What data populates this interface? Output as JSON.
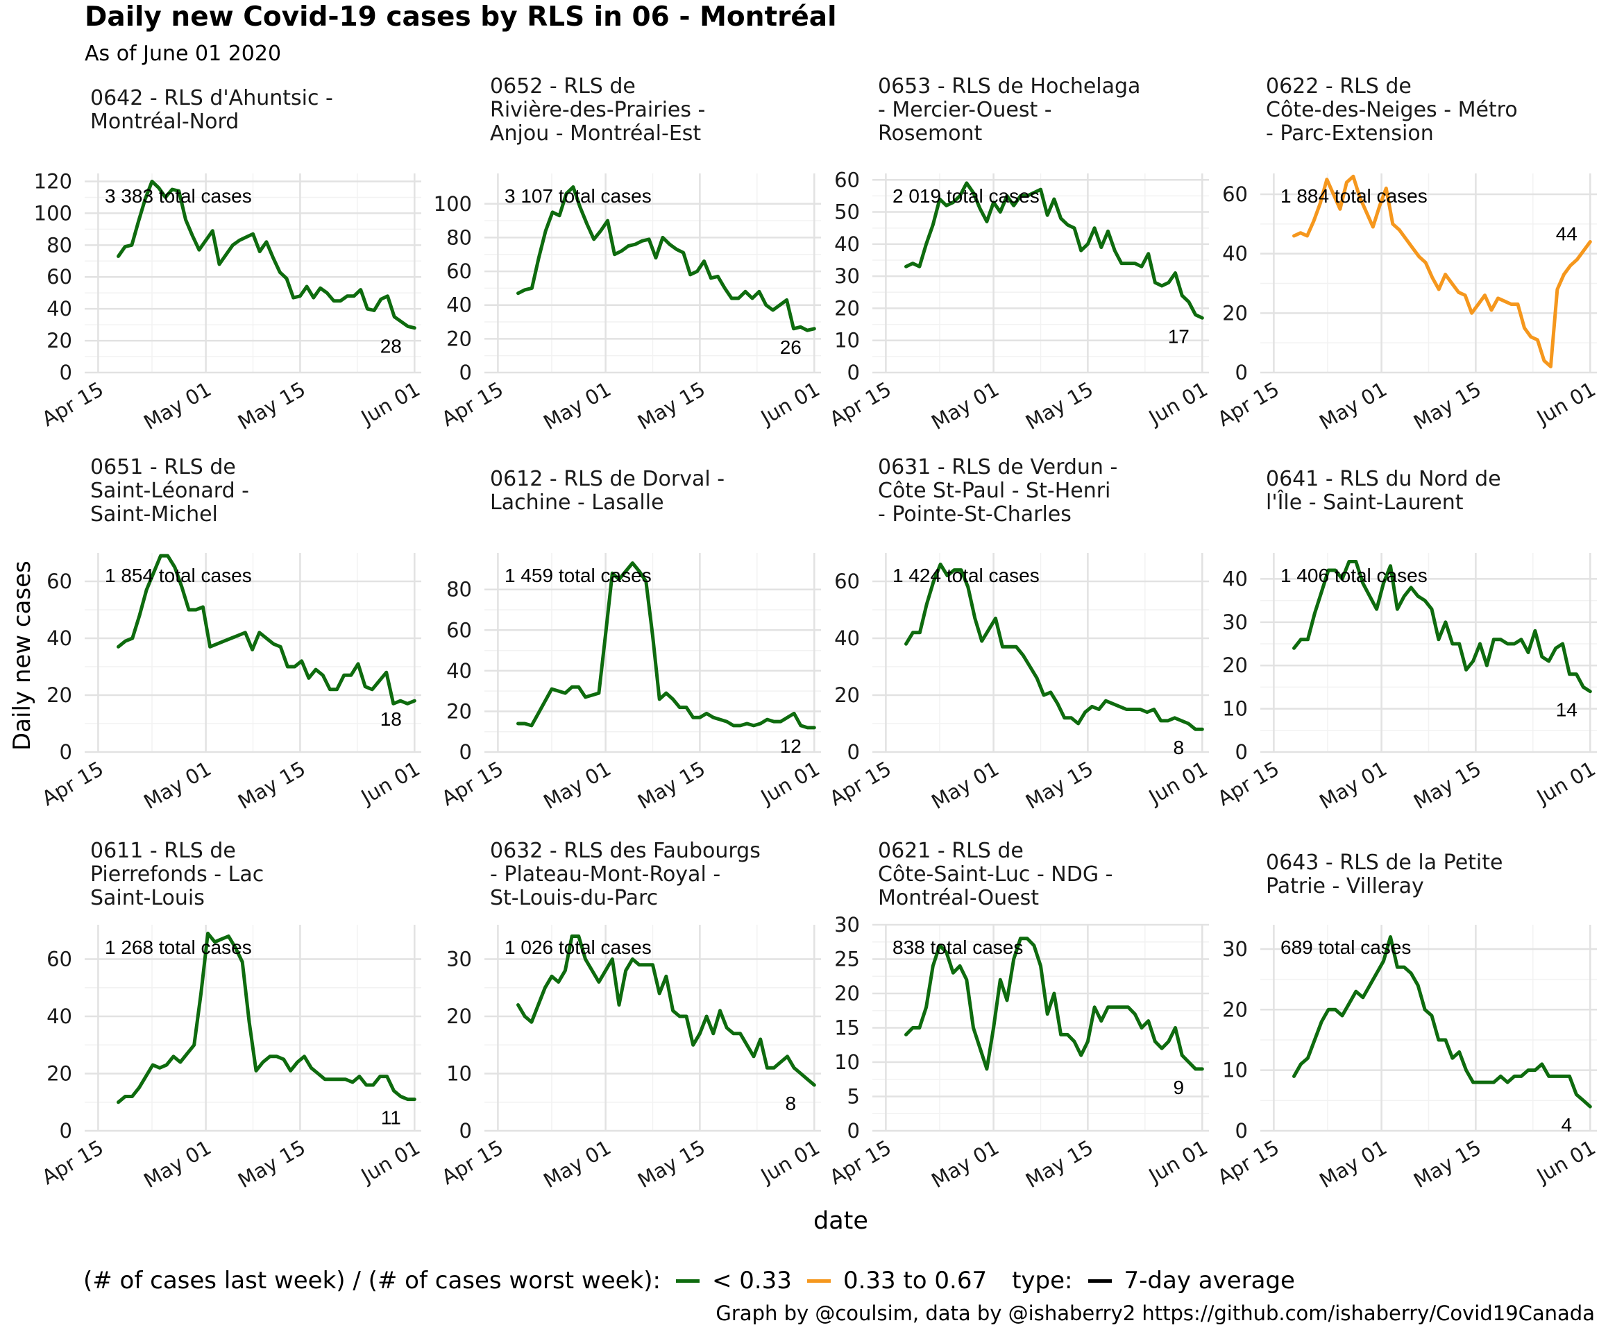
{
  "title": "Daily new Covid-19 cases by RLS in 06 - Montréal",
  "subtitle": "As of June 01 2020",
  "xlabel": "date",
  "ylabel": "Daily new cases",
  "legend": {
    "fill_title": "(# of cases last week) / (# of cases worst week):",
    "items": [
      {
        "label": "< 0.33",
        "color": "#0e6b0e"
      },
      {
        "label": "0.33 to 0.67",
        "color": "#f5971d"
      }
    ],
    "type_title": "type:",
    "type_items": [
      {
        "label": "7-day average",
        "color": "#000000"
      }
    ]
  },
  "caption": "Graph by @coulsim, data by @ishaberry2 https://github.com/ishaberry/Covid19Canada",
  "chart_data": {
    "type": "line",
    "facets": "3x4",
    "x_unit": "days since Apr 01 2020",
    "x_range": [
      13,
      63
    ],
    "x_ticks": [
      {
        "value": 15,
        "label": "Apr 15"
      },
      {
        "value": 31,
        "label": "May 01"
      },
      {
        "value": 45,
        "label": "May 15"
      },
      {
        "value": 62,
        "label": "Jun 01"
      }
    ],
    "x_start": 18,
    "grid": true,
    "panels": [
      {
        "title": [
          "0642 - RLS d'Ahuntsic -",
          "Montréal-Nord"
        ],
        "total": "3 383 total cases",
        "end_label": "28",
        "color": "#0e6b0e",
        "ylim": [
          0,
          125
        ],
        "yticks": [
          0,
          20,
          40,
          60,
          80,
          100,
          120
        ],
        "values": [
          73,
          79,
          80,
          95,
          109,
          120,
          116,
          110,
          115,
          114,
          96,
          86,
          77,
          83,
          89,
          68,
          74,
          80,
          83,
          85,
          87,
          76,
          82,
          72,
          63,
          59,
          47,
          48,
          54,
          47,
          53,
          50,
          45,
          45,
          48,
          48,
          52,
          40,
          39,
          46,
          48,
          35,
          32,
          29,
          28
        ]
      },
      {
        "title": [
          "0652 - RLS de",
          "Rivière-des-Prairies -",
          "Anjou - Montréal-Est"
        ],
        "total": "3 107 total cases",
        "end_label": "26",
        "color": "#0e6b0e",
        "ylim": [
          0,
          118
        ],
        "yticks": [
          0,
          20,
          40,
          60,
          80,
          100
        ],
        "values": [
          47,
          49,
          50,
          68,
          84,
          95,
          93,
          106,
          110,
          98,
          88,
          79,
          84,
          90,
          70,
          72,
          75,
          76,
          78,
          79,
          68,
          80,
          76,
          73,
          71,
          58,
          60,
          66,
          56,
          57,
          50,
          44,
          44,
          48,
          44,
          48,
          40,
          37,
          40,
          43,
          26,
          27,
          25,
          26
        ]
      },
      {
        "title": [
          "0653 - RLS de Hochelaga",
          "- Mercier-Ouest -",
          "Rosemont"
        ],
        "total": "2 019 total cases",
        "end_label": "17",
        "color": "#0e6b0e",
        "ylim": [
          0,
          62
        ],
        "yticks": [
          0,
          10,
          20,
          30,
          40,
          50,
          60
        ],
        "values": [
          33,
          34,
          33,
          40,
          46,
          54,
          52,
          53,
          55,
          59,
          56,
          51,
          47,
          53,
          50,
          55,
          52,
          55,
          55,
          56,
          57,
          49,
          54,
          48,
          46,
          45,
          38,
          40,
          45,
          39,
          44,
          38,
          34,
          34,
          34,
          33,
          37,
          28,
          27,
          28,
          31,
          24,
          22,
          18,
          17
        ]
      },
      {
        "title": [
          "0622 - RLS de",
          "Côte-des-Neiges - Métro",
          "- Parc-Extension"
        ],
        "total": "1 884 total cases",
        "end_label": "44",
        "color": "#f5971d",
        "ylim": [
          0,
          67
        ],
        "yticks": [
          0,
          20,
          40,
          60
        ],
        "values": [
          46,
          47,
          46,
          51,
          57,
          65,
          60,
          55,
          64,
          66,
          59,
          54,
          49,
          56,
          62,
          50,
          48,
          45,
          42,
          39,
          37,
          32,
          28,
          33,
          30,
          27,
          26,
          20,
          23,
          26,
          21,
          25,
          24,
          23,
          23,
          15,
          12,
          11,
          4,
          2,
          28,
          33,
          36,
          38,
          41,
          44
        ]
      },
      {
        "title": [
          "0651 - RLS de",
          "Saint-Léonard -",
          "Saint-Michel"
        ],
        "total": "1 854 total cases",
        "end_label": "18",
        "color": "#0e6b0e",
        "ylim": [
          0,
          70
        ],
        "yticks": [
          0,
          20,
          40,
          60
        ],
        "values": [
          37,
          39,
          40,
          48,
          57,
          63,
          69,
          69,
          65,
          58,
          50,
          50,
          51,
          37,
          38,
          39,
          40,
          41,
          42,
          36,
          42,
          40,
          38,
          37,
          30,
          30,
          32,
          26,
          29,
          27,
          22,
          22,
          27,
          27,
          31,
          23,
          22,
          25,
          28,
          17,
          18,
          17,
          18
        ]
      },
      {
        "title": [
          "0612 - RLS de Dorval -",
          "Lachine - Lasalle"
        ],
        "total": "1 459 total cases",
        "end_label": "12",
        "color": "#0e6b0e",
        "ylim": [
          0,
          98
        ],
        "yticks": [
          0,
          20,
          40,
          60,
          80
        ],
        "values": [
          14,
          14,
          13,
          19,
          25,
          31,
          30,
          29,
          32,
          32,
          27,
          28,
          29,
          58,
          88,
          85,
          89,
          93,
          89,
          84,
          57,
          26,
          29,
          26,
          22,
          22,
          17,
          17,
          19,
          17,
          16,
          15,
          13,
          13,
          14,
          13,
          14,
          16,
          15,
          15,
          17,
          19,
          13,
          12,
          12
        ]
      },
      {
        "title": [
          "0631 - RLS de Verdun -",
          "Côte St-Paul - St-Henri",
          "- Pointe-St-Charles"
        ],
        "total": "1 424 total cases",
        "end_label": "8",
        "color": "#0e6b0e",
        "ylim": [
          0,
          70
        ],
        "yticks": [
          0,
          20,
          40,
          60
        ],
        "values": [
          38,
          42,
          42,
          52,
          60,
          66,
          62,
          64,
          64,
          58,
          47,
          39,
          43,
          47,
          37,
          37,
          37,
          34,
          30,
          26,
          20,
          21,
          17,
          12,
          12,
          10,
          14,
          16,
          15,
          18,
          17,
          16,
          15,
          15,
          15,
          14,
          15,
          11,
          11,
          12,
          11,
          10,
          8,
          8
        ]
      },
      {
        "title": [
          "0641 - RLS du Nord de",
          "l'Île - Saint-Laurent"
        ],
        "total": "1 406 total cases",
        "end_label": "14",
        "color": "#0e6b0e",
        "ylim": [
          0,
          46
        ],
        "yticks": [
          0,
          10,
          20,
          30,
          40
        ],
        "values": [
          24,
          26,
          26,
          32,
          37,
          42,
          42,
          40,
          44,
          44,
          39,
          36,
          33,
          39,
          43,
          33,
          36,
          38,
          36,
          35,
          33,
          26,
          30,
          25,
          25,
          19,
          21,
          25,
          20,
          26,
          26,
          25,
          25,
          26,
          23,
          28,
          22,
          21,
          24,
          25,
          18,
          18,
          15,
          14
        ]
      },
      {
        "title": [
          "0611 - RLS de",
          "Pierrefonds - Lac",
          "Saint-Louis"
        ],
        "total": "1 268 total cases",
        "end_label": "11",
        "color": "#0e6b0e",
        "ylim": [
          0,
          72
        ],
        "yticks": [
          0,
          20,
          40,
          60
        ],
        "values": [
          10,
          12,
          12,
          15,
          19,
          23,
          22,
          23,
          26,
          24,
          27,
          30,
          48,
          69,
          66,
          67,
          68,
          64,
          59,
          38,
          21,
          24,
          26,
          26,
          25,
          21,
          24,
          26,
          22,
          20,
          18,
          18,
          18,
          18,
          17,
          19,
          16,
          16,
          19,
          19,
          14,
          12,
          11,
          11
        ]
      },
      {
        "title": [
          "0632 - RLS des Faubourgs",
          "- Plateau-Mont-Royal -",
          "St-Louis-du-Parc"
        ],
        "total": "1 026 total cases",
        "end_label": "8",
        "color": "#0e6b0e",
        "ylim": [
          0,
          36
        ],
        "yticks": [
          0,
          10,
          20,
          30
        ],
        "values": [
          22,
          20,
          19,
          22,
          25,
          27,
          26,
          28,
          34,
          34,
          30,
          28,
          26,
          28,
          30,
          22,
          28,
          30,
          29,
          29,
          29,
          24,
          27,
          21,
          20,
          20,
          15,
          17,
          20,
          17,
          21,
          18,
          17,
          17,
          15,
          13,
          16,
          11,
          11,
          12,
          13,
          11,
          10,
          9,
          8
        ]
      },
      {
        "title": [
          "0621 - RLS de",
          "Côte-Saint-Luc - NDG -",
          "Montréal-Ouest"
        ],
        "total": "838 total cases",
        "end_label": "9",
        "color": "#0e6b0e",
        "ylim": [
          0,
          30
        ],
        "yticks": [
          0,
          5,
          10,
          15,
          20,
          25,
          30
        ],
        "values": [
          14,
          15,
          15,
          18,
          24,
          27,
          26,
          23,
          24,
          22,
          15,
          12,
          9,
          15,
          22,
          19,
          25,
          28,
          28,
          27,
          24,
          17,
          20,
          14,
          14,
          13,
          11,
          13,
          18,
          16,
          18,
          18,
          18,
          18,
          17,
          15,
          16,
          13,
          12,
          13,
          15,
          11,
          10,
          9,
          9
        ]
      },
      {
        "title": [
          "0643 - RLS de la Petite",
          "Patrie - Villeray"
        ],
        "total": "689 total cases",
        "end_label": "4",
        "color": "#0e6b0e",
        "ylim": [
          0,
          34
        ],
        "yticks": [
          0,
          10,
          20,
          30
        ],
        "values": [
          9,
          11,
          12,
          15,
          18,
          20,
          20,
          19,
          21,
          23,
          22,
          24,
          26,
          28,
          32,
          27,
          27,
          26,
          24,
          20,
          19,
          15,
          15,
          12,
          13,
          10,
          8,
          8,
          8,
          8,
          9,
          8,
          9,
          9,
          10,
          10,
          11,
          9,
          9,
          9,
          9,
          6,
          5,
          4
        ]
      }
    ]
  }
}
